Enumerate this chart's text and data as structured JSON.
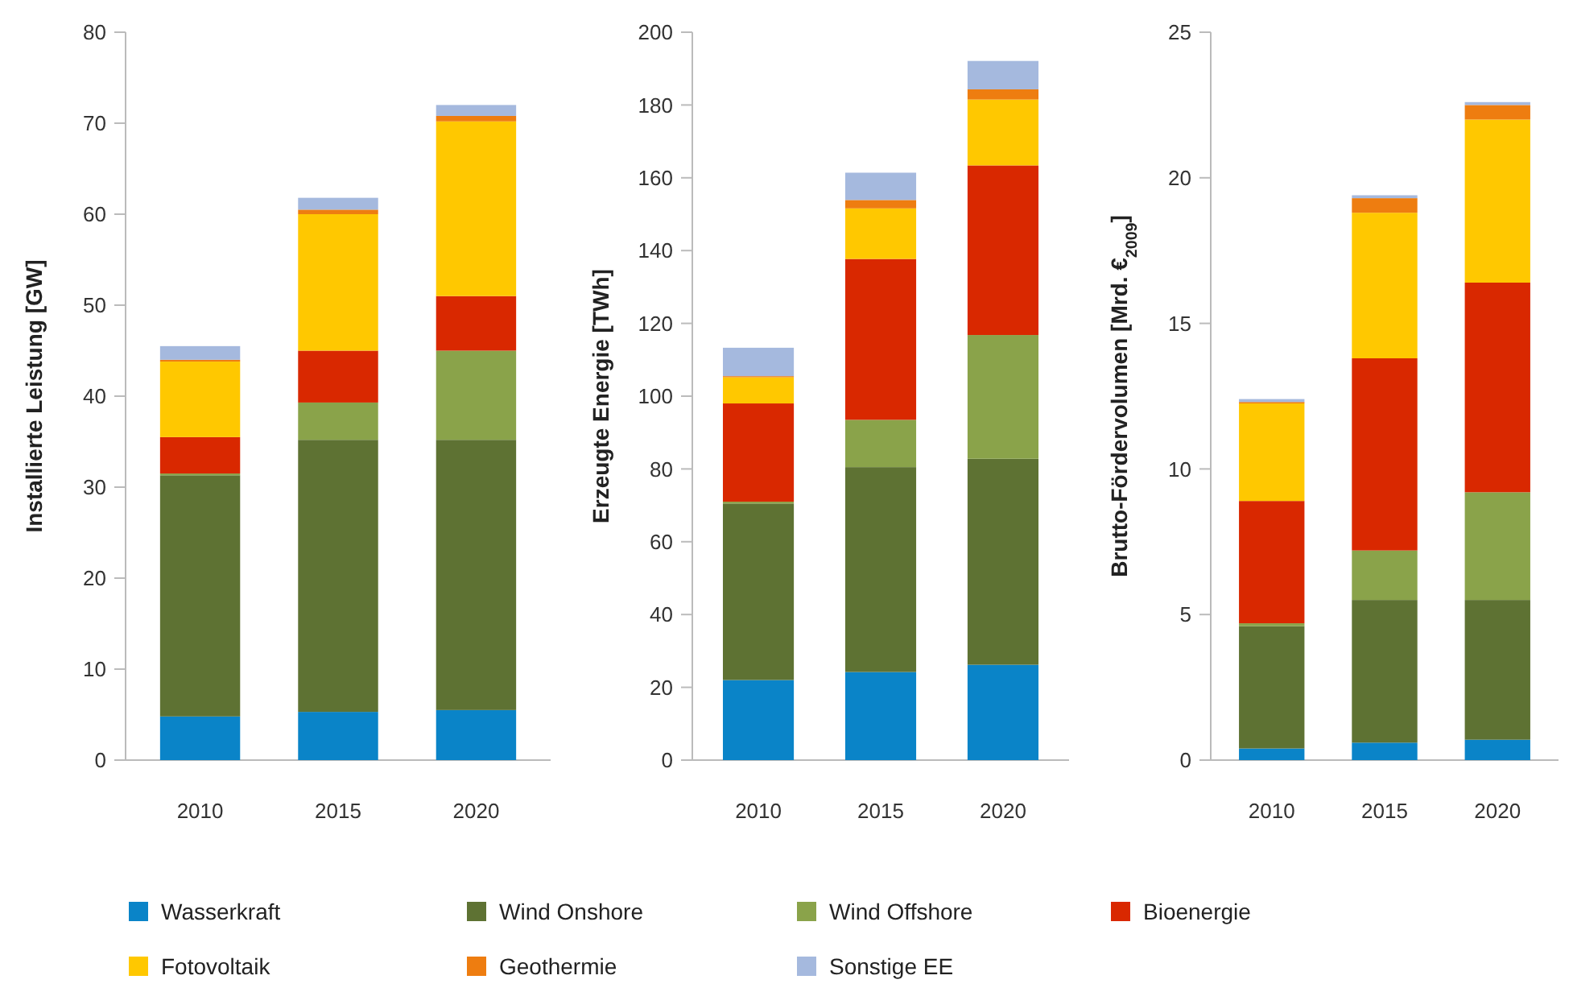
{
  "chart_data": [
    {
      "type": "bar",
      "stacked": true,
      "ylabel": "Installierte Leistung [GW]",
      "categories": [
        "2010",
        "2015",
        "2020"
      ],
      "ylim": [
        0,
        80
      ],
      "yticks": [
        0,
        10,
        20,
        30,
        40,
        50,
        60,
        70,
        80
      ],
      "legend": "bottom",
      "series": [
        {
          "name": "Wasserkraft",
          "color": "#0a84c8",
          "values": [
            4.8,
            5.3,
            5.5
          ]
        },
        {
          "name": "Wind Onshore",
          "color": "#5e7233",
          "values": [
            26.5,
            29.9,
            29.7
          ]
        },
        {
          "name": "Wind Offshore",
          "color": "#8aa34a",
          "values": [
            0.2,
            4.1,
            9.8
          ]
        },
        {
          "name": "Bioenergie",
          "color": "#d92800",
          "values": [
            4.0,
            5.7,
            6.0
          ]
        },
        {
          "name": "Fotovoltaik",
          "color": "#ffc800",
          "values": [
            8.3,
            15.0,
            19.2
          ]
        },
        {
          "name": "Geothermie",
          "color": "#ee7d10",
          "values": [
            0.2,
            0.5,
            0.6
          ]
        },
        {
          "name": "Sonstige EE",
          "color": "#a5b9de",
          "values": [
            1.5,
            1.3,
            1.2
          ]
        }
      ]
    },
    {
      "type": "bar",
      "stacked": true,
      "ylabel": "Erzeugte Energie [TWh]",
      "categories": [
        "2010",
        "2015",
        "2020"
      ],
      "ylim": [
        0,
        200
      ],
      "yticks": [
        0,
        20,
        40,
        60,
        80,
        100,
        120,
        140,
        160,
        180,
        200
      ],
      "series": [
        {
          "color": "#0a84c8",
          "values": [
            22,
            24.2,
            26.2
          ]
        },
        {
          "color": "#5e7233",
          "values": [
            48.5,
            56.3,
            56.6
          ]
        },
        {
          "color": "#8aa34a",
          "values": [
            0.5,
            13,
            34
          ]
        },
        {
          "color": "#d92800",
          "values": [
            27,
            44.2,
            46.6
          ]
        },
        {
          "color": "#ffc800",
          "values": [
            7.2,
            13.9,
            18.1
          ]
        },
        {
          "color": "#ee7d10",
          "values": [
            0.3,
            2.3,
            2.8
          ]
        },
        {
          "color": "#a5b9de",
          "values": [
            7.8,
            7.5,
            7.8
          ]
        }
      ]
    },
    {
      "type": "bar",
      "stacked": true,
      "ylabel": "Brutto-Fördervolumen [Mrd. €$_{2009}$]",
      "categories": [
        "2010",
        "2015",
        "2020"
      ],
      "ylim": [
        0,
        25
      ],
      "yticks": [
        0,
        5,
        10,
        15,
        20,
        25
      ],
      "series": [
        {
          "color": "#0a84c8",
          "values": [
            0.4,
            0.6,
            0.7
          ]
        },
        {
          "color": "#5e7233",
          "values": [
            4.2,
            4.9,
            4.8
          ]
        },
        {
          "color": "#8aa34a",
          "values": [
            0.1,
            1.7,
            3.7
          ]
        },
        {
          "color": "#d92800",
          "values": [
            4.2,
            6.6,
            7.2
          ]
        },
        {
          "color": "#ffc800",
          "values": [
            3.35,
            5.0,
            5.6
          ]
        },
        {
          "color": "#ee7d10",
          "values": [
            0.05,
            0.5,
            0.5
          ]
        },
        {
          "color": "#a5b9de",
          "values": [
            0.1,
            0.1,
            0.1
          ]
        }
      ]
    }
  ]
}
